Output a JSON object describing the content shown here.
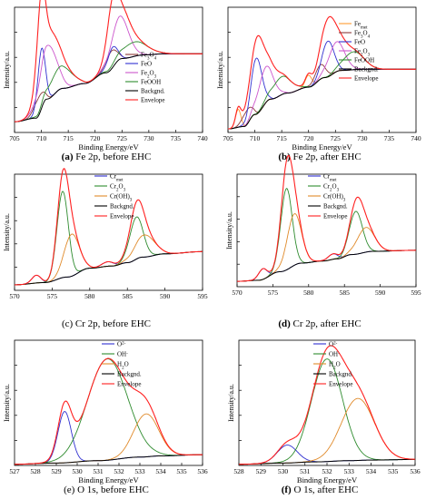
{
  "figure": {
    "panels": [
      {
        "letter": "(a)",
        "caption": " Fe 2p, before EHC"
      },
      {
        "letter": "(b)",
        "caption": " Fe 2p, after EHC"
      },
      {
        "letter": "",
        "caption": "(c) Cr 2p, before EHC"
      },
      {
        "letter": "(d)",
        "caption": " Cr 2p, after EHC"
      },
      {
        "letter": "",
        "caption": "(e) O 1s, before EHC"
      },
      {
        "letter": "(f)",
        "caption": " O 1s, after EHC"
      }
    ]
  },
  "chart_data": [
    {
      "type": "line",
      "xlabel": "Binding Energy/eV",
      "ylabel": "Intensity/a.u.",
      "xlim": [
        705,
        740
      ],
      "xticks": [
        705,
        710,
        715,
        720,
        725,
        730,
        735,
        740
      ],
      "ylim": [
        0,
        1.05
      ],
      "legend": {
        "position": "right",
        "entries": [
          {
            "label": "Fe3O4",
            "base": "Fe",
            "sub": "3",
            "mid": "O",
            "sub2": "4",
            "color": "#8b3a3a"
          },
          {
            "label": "FeO",
            "base": "FeO",
            "color": "#3030d0"
          },
          {
            "label": "Fe2O3",
            "base": "Fe",
            "sub": "2",
            "mid": "O",
            "sub2": "3",
            "color": "#cc55cc"
          },
          {
            "label": "FeOOH",
            "base": "FeOOH",
            "color": "#2e8b2e"
          },
          {
            "label": "Backgnd.",
            "base": "Backgnd.",
            "color": "#000000"
          },
          {
            "label": "Envelope",
            "base": "Envelope",
            "color": "#ff2020"
          }
        ]
      },
      "background": {
        "x": [
          705,
          709,
          711,
          714,
          718,
          722,
          725,
          729,
          733,
          740
        ],
        "y": [
          0.09,
          0.12,
          0.28,
          0.37,
          0.41,
          0.5,
          0.62,
          0.65,
          0.66,
          0.66
        ]
      },
      "components": [
        {
          "name": "Fe3O4",
          "color": "#8b3a3a",
          "peaks": [
            [
              709.5,
              0.15,
              0.9
            ],
            [
              723.0,
              0.15,
              1.0
            ]
          ]
        },
        {
          "name": "FeO",
          "color": "#3030d0",
          "peaks": [
            [
              710.0,
              0.5,
              0.7
            ],
            [
              723.2,
              0.17,
              0.9
            ]
          ]
        },
        {
          "name": "Fe2O3",
          "color": "#cc55cc",
          "peaks": [
            [
              711.2,
              0.45,
              1.6
            ],
            [
              724.6,
              0.36,
              1.6
            ]
          ]
        },
        {
          "name": "FeOOH",
          "color": "#2e8b2e",
          "peaks": [
            [
              713.6,
              0.19,
              2.0
            ],
            [
              727.3,
              0.12,
              2.4
            ]
          ]
        }
      ]
    },
    {
      "type": "line",
      "xlabel": "Binding Energy/eV",
      "ylabel": "Intensity/a.u.",
      "xlim": [
        705,
        740
      ],
      "xticks": [
        705,
        710,
        715,
        720,
        725,
        730,
        735,
        740
      ],
      "ylim": [
        0,
        1.05
      ],
      "legend": {
        "position": "right",
        "entries": [
          {
            "label": "Femet",
            "base": "Fe",
            "sub": "met",
            "color": "#ff9a30"
          },
          {
            "label": "Fe3O4",
            "base": "Fe",
            "sub": "3",
            "mid": "O",
            "sub2": "4",
            "color": "#8b3a3a"
          },
          {
            "label": "FeO",
            "base": "FeO",
            "color": "#3030d0"
          },
          {
            "label": "Fe2O3",
            "base": "Fe",
            "sub": "2",
            "mid": "O",
            "sub2": "3",
            "color": "#cc55cc"
          },
          {
            "label": "FeOOH",
            "base": "FeOOH",
            "color": "#2e8b2e"
          },
          {
            "label": "Backgnd.",
            "base": "Backgnd.",
            "color": "#000000"
          },
          {
            "label": "Envelope",
            "base": "Envelope",
            "color": "#ff2020"
          }
        ]
      },
      "background": {
        "x": [
          705,
          708,
          710,
          713,
          716,
          720,
          723,
          726,
          730,
          740
        ],
        "y": [
          0.03,
          0.05,
          0.15,
          0.28,
          0.33,
          0.38,
          0.46,
          0.52,
          0.53,
          0.53
        ]
      },
      "components": [
        {
          "name": "Femet",
          "color": "#ff9a30",
          "peaks": [
            [
              706.9,
              0.15,
              0.5
            ],
            [
              720.0,
              0.1,
              0.6
            ]
          ]
        },
        {
          "name": "Fe3O4",
          "color": "#8b3a3a",
          "peaks": [
            [
              708.6,
              0.12,
              0.9
            ],
            [
              722.2,
              0.12,
              1.0
            ]
          ]
        },
        {
          "name": "FeO",
          "color": "#3030d0",
          "peaks": [
            [
              710.3,
              0.47,
              1.0
            ],
            [
              723.6,
              0.3,
              1.1
            ]
          ]
        },
        {
          "name": "Fe2O3",
          "color": "#cc55cc",
          "peaks": [
            [
              712.0,
              0.3,
              1.4
            ],
            [
              725.2,
              0.25,
              1.5
            ]
          ]
        },
        {
          "name": "FeOOH",
          "color": "#2e8b2e",
          "peaks": [
            [
              715.0,
              0.15,
              1.8
            ],
            [
              728.4,
              0.15,
              1.9
            ]
          ]
        }
      ]
    },
    {
      "type": "line",
      "xlabel": "",
      "ylabel": "Intensity/a.u.",
      "xlim": [
        570,
        595
      ],
      "xticks": [
        570,
        575,
        580,
        585,
        590,
        595
      ],
      "ylim": [
        0,
        1.05
      ],
      "legend": {
        "position": "top-right",
        "entries": [
          {
            "label": "Crmet",
            "base": "Cr",
            "sub": "met",
            "color": "#3030d0"
          },
          {
            "label": "Cr2O3",
            "base": "Cr",
            "sub": "2",
            "mid": "O",
            "sub2": "3",
            "color": "#2e8b2e"
          },
          {
            "label": "Cr(OH)3",
            "base": "Cr(OH)",
            "sub": "3",
            "color": "#e08a2a"
          },
          {
            "label": "Backgnd.",
            "base": "Backgnd.",
            "color": "#000000"
          },
          {
            "label": "Envelope",
            "base": "Envelope",
            "color": "#ff2020"
          }
        ]
      },
      "background": {
        "x": [
          570,
          574,
          577,
          580,
          583,
          585,
          587,
          590,
          595
        ],
        "y": [
          0.05,
          0.07,
          0.12,
          0.2,
          0.22,
          0.25,
          0.3,
          0.33,
          0.35
        ]
      },
      "components": [
        {
          "name": "Crmet",
          "color": "#3030d0",
          "peaks": [
            [
              572.9,
              0.07,
              0.6
            ],
            [
              582.4,
              0.04,
              0.8
            ]
          ]
        },
        {
          "name": "Cr2O3",
          "color": "#2e8b2e",
          "peaks": [
            [
              576.4,
              0.78,
              0.75
            ],
            [
              586.2,
              0.38,
              0.9
            ]
          ]
        },
        {
          "name": "Cr(OH)3",
          "color": "#e08a2a",
          "peaks": [
            [
              577.6,
              0.38,
              1.0
            ],
            [
              587.3,
              0.2,
              1.3
            ]
          ]
        }
      ]
    },
    {
      "type": "line",
      "xlabel": "",
      "ylabel": "Intensity/a.u.",
      "xlim": [
        570,
        595
      ],
      "xticks": [
        570,
        575,
        580,
        585,
        590,
        595
      ],
      "ylim": [
        0,
        1.05
      ],
      "legend": {
        "position": "top-right",
        "entries": [
          {
            "label": "Crmet",
            "base": "Cr",
            "sub": "met",
            "color": "#3030d0"
          },
          {
            "label": "Cr2O3",
            "base": "Cr",
            "sub": "2",
            "mid": "O",
            "sub2": "3",
            "color": "#2e8b2e"
          },
          {
            "label": "Cr(OH)3",
            "base": "Cr(OH)",
            "sub": "3",
            "color": "#e08a2a"
          },
          {
            "label": "Backgnd.",
            "base": "Backgnd.",
            "color": "#000000"
          },
          {
            "label": "Envelope",
            "base": "Envelope",
            "color": "#ff2020"
          }
        ]
      },
      "background": {
        "x": [
          570,
          573,
          576,
          579,
          582,
          584,
          586,
          589,
          595
        ],
        "y": [
          0.05,
          0.06,
          0.14,
          0.22,
          0.24,
          0.26,
          0.3,
          0.33,
          0.34
        ]
      },
      "components": [
        {
          "name": "Crmet",
          "color": "#3030d0",
          "peaks": [
            [
              573.6,
              0.1,
              0.6
            ],
            [
              583.4,
              0.05,
              0.7
            ]
          ]
        },
        {
          "name": "Cr2O3",
          "color": "#2e8b2e",
          "peaks": [
            [
              576.9,
              0.76,
              0.8
            ],
            [
              586.6,
              0.4,
              0.9
            ]
          ]
        },
        {
          "name": "Cr(OH)3",
          "color": "#e08a2a",
          "peaks": [
            [
              578.0,
              0.48,
              1.0
            ],
            [
              588.0,
              0.23,
              1.2
            ]
          ]
        }
      ]
    },
    {
      "type": "line",
      "xlabel": "Binding Energy/eV",
      "ylabel": "Intensity/a.u.",
      "xlim": [
        527,
        536
      ],
      "xticks": [
        527,
        528,
        529,
        530,
        531,
        532,
        533,
        534,
        535,
        536
      ],
      "ylim": [
        0,
        1.05
      ],
      "legend": {
        "position": "top-right",
        "entries": [
          {
            "label": "O2-",
            "base": "O",
            "sup": "2-",
            "color": "#3030d0"
          },
          {
            "label": "OH-",
            "base": "OH",
            "sup": "-",
            "color": "#2e8b2e"
          },
          {
            "label": "H2O",
            "base": "H",
            "sub": "2",
            "mid": "O",
            "color": "#e08a2a"
          },
          {
            "label": "Backgnd.",
            "base": "Backgnd.",
            "color": "#000000"
          },
          {
            "label": "Envelope",
            "base": "Envelope",
            "color": "#ff2020"
          }
        ]
      },
      "background": {
        "x": [
          527,
          529,
          531,
          533,
          534,
          536
        ],
        "y": [
          0.01,
          0.02,
          0.04,
          0.07,
          0.08,
          0.09
        ]
      },
      "components": [
        {
          "name": "O2-",
          "color": "#3030d0",
          "peaks": [
            [
              529.4,
              0.43,
              0.32
            ]
          ]
        },
        {
          "name": "OH-",
          "color": "#2e8b2e",
          "peaks": [
            [
              531.45,
              0.85,
              0.95
            ]
          ]
        },
        {
          "name": "H2O",
          "color": "#e08a2a",
          "peaks": [
            [
              533.3,
              0.36,
              0.6
            ]
          ]
        }
      ]
    },
    {
      "type": "line",
      "xlabel": "Binding Energy/eV",
      "ylabel": "Intensity/a.u.",
      "xlim": [
        528,
        536
      ],
      "xticks": [
        528,
        529,
        530,
        531,
        532,
        533,
        534,
        535,
        536
      ],
      "ylim": [
        0,
        1.05
      ],
      "legend": {
        "position": "top-right",
        "entries": [
          {
            "label": "O2-",
            "base": "O",
            "sup": "2-",
            "color": "#3030d0"
          },
          {
            "label": "OH-",
            "base": "OH",
            "sup": "-",
            "color": "#2e8b2e"
          },
          {
            "label": "H2O",
            "base": "H",
            "sub": "2",
            "mid": "O",
            "color": "#e08a2a"
          },
          {
            "label": "Backgnd.",
            "base": "Backgnd.",
            "color": "#000000"
          },
          {
            "label": "Envelope",
            "base": "Envelope",
            "color": "#ff2020"
          }
        ]
      },
      "background": {
        "x": [
          528,
          530,
          531.5,
          533,
          534,
          536
        ],
        "y": [
          0.01,
          0.02,
          0.03,
          0.04,
          0.045,
          0.05
        ]
      },
      "components": [
        {
          "name": "O2-",
          "color": "#3030d0",
          "peaks": [
            [
              530.2,
              0.15,
              0.45
            ]
          ]
        },
        {
          "name": "OH-",
          "color": "#2e8b2e",
          "peaks": [
            [
              532.0,
              0.86,
              0.7
            ]
          ]
        },
        {
          "name": "H2O",
          "color": "#e08a2a",
          "peaks": [
            [
              533.4,
              0.52,
              0.75
            ]
          ]
        }
      ]
    }
  ]
}
